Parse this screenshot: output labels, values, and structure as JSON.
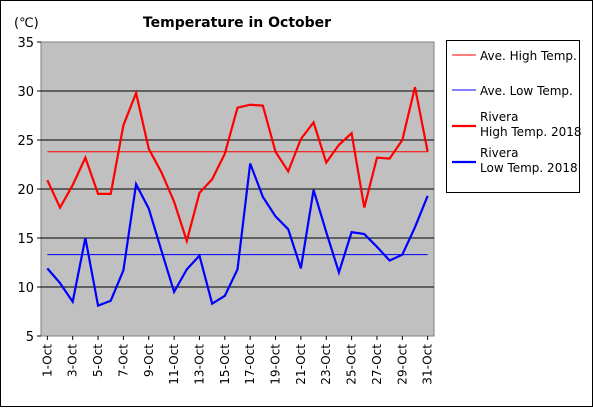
{
  "chart_data": {
    "type": "line",
    "title": "Temperature in October",
    "unit": "(℃)",
    "ylim": [
      5,
      35
    ],
    "yticks": [
      5,
      10,
      15,
      20,
      25,
      30,
      35
    ],
    "grid": true,
    "legend_position": "right",
    "x": [
      "1-Oct",
      "2-Oct",
      "3-Oct",
      "4-Oct",
      "5-Oct",
      "6-Oct",
      "7-Oct",
      "8-Oct",
      "9-Oct",
      "10-Oct",
      "11-Oct",
      "12-Oct",
      "13-Oct",
      "14-Oct",
      "15-Oct",
      "16-Oct",
      "17-Oct",
      "18-Oct",
      "19-Oct",
      "20-Oct",
      "21-Oct",
      "22-Oct",
      "23-Oct",
      "24-Oct",
      "25-Oct",
      "26-Oct",
      "27-Oct",
      "28-Oct",
      "29-Oct",
      "30-Oct",
      "31-Oct"
    ],
    "xtick_labels": [
      "1-Oct",
      "3-Oct",
      "5-Oct",
      "7-Oct",
      "9-Oct",
      "11-Oct",
      "13-Oct",
      "15-Oct",
      "17-Oct",
      "19-Oct",
      "21-Oct",
      "23-Oct",
      "25-Oct",
      "27-Oct",
      "29-Oct",
      "31-Oct"
    ],
    "series": [
      {
        "name": "Ave. High Temp.",
        "color": "#ff0000",
        "stroke": "thin",
        "values": [
          23.8,
          23.8,
          23.8,
          23.8,
          23.8,
          23.8,
          23.8,
          23.8,
          23.8,
          23.8,
          23.8,
          23.8,
          23.8,
          23.8,
          23.8,
          23.8,
          23.8,
          23.8,
          23.8,
          23.8,
          23.8,
          23.8,
          23.8,
          23.8,
          23.8,
          23.8,
          23.8,
          23.8,
          23.8,
          23.8,
          23.8
        ]
      },
      {
        "name": "Ave. Low Temp.",
        "color": "#0000ff",
        "stroke": "thin",
        "values": [
          13.3,
          13.3,
          13.3,
          13.3,
          13.3,
          13.3,
          13.3,
          13.3,
          13.3,
          13.3,
          13.3,
          13.3,
          13.3,
          13.3,
          13.3,
          13.3,
          13.3,
          13.3,
          13.3,
          13.3,
          13.3,
          13.3,
          13.3,
          13.3,
          13.3,
          13.3,
          13.3,
          13.3,
          13.3,
          13.3,
          13.3
        ]
      },
      {
        "name": "Rivera High Temp. 2018",
        "legend_lines": [
          "Rivera",
          "High Temp. 2018"
        ],
        "color": "#ff0000",
        "stroke": "thick",
        "values": [
          20.9,
          18.1,
          20.4,
          23.2,
          19.5,
          19.5,
          26.5,
          29.8,
          24.1,
          21.7,
          18.7,
          14.7,
          19.6,
          21.0,
          23.6,
          28.3,
          28.6,
          28.5,
          23.8,
          21.8,
          25.1,
          26.8,
          22.7,
          24.5,
          25.7,
          18.1,
          23.2,
          23.1,
          25.0,
          30.4,
          23.8
        ]
      },
      {
        "name": "Rivera Low Temp. 2018",
        "legend_lines": [
          "Rivera",
          "Low Temp. 2018"
        ],
        "color": "#0000ff",
        "stroke": "thick",
        "values": [
          11.9,
          10.4,
          8.5,
          15.0,
          8.1,
          8.6,
          11.7,
          20.5,
          18.0,
          13.7,
          9.5,
          11.8,
          13.2,
          8.3,
          9.1,
          11.8,
          22.6,
          19.2,
          17.2,
          15.9,
          11.9,
          19.9,
          15.6,
          11.5,
          15.6,
          15.4,
          14.1,
          12.7,
          13.3,
          16.1,
          19.3
        ]
      }
    ]
  }
}
